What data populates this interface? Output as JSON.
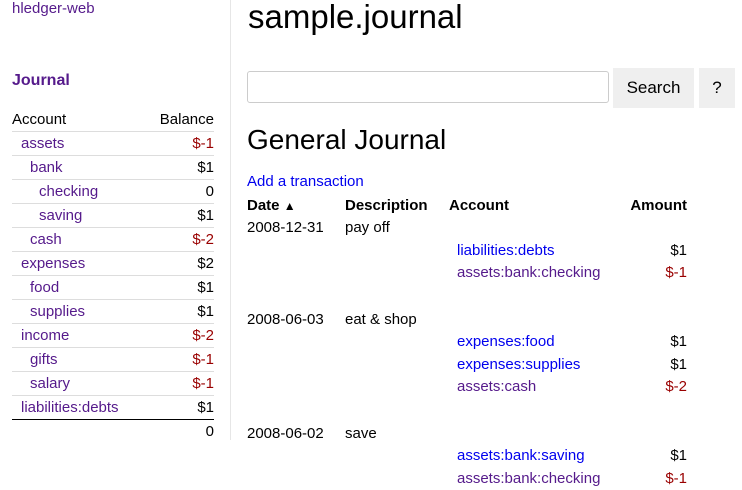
{
  "brand": "hledger-web",
  "sidebar": {
    "journal_link": "Journal",
    "headers": {
      "account": "Account",
      "balance": "Balance"
    },
    "accounts": [
      {
        "name": "assets",
        "balance": "$-1",
        "level": 1,
        "neg": true
      },
      {
        "name": "bank",
        "balance": "$1",
        "level": 2,
        "neg": false
      },
      {
        "name": "checking",
        "balance": "0",
        "level": 3,
        "neg": false
      },
      {
        "name": "saving",
        "balance": "$1",
        "level": 3,
        "neg": false
      },
      {
        "name": "cash",
        "balance": "$-2",
        "level": 2,
        "neg": true
      },
      {
        "name": "expenses",
        "balance": "$2",
        "level": 1,
        "neg": false
      },
      {
        "name": "food",
        "balance": "$1",
        "level": 2,
        "neg": false
      },
      {
        "name": "supplies",
        "balance": "$1",
        "level": 2,
        "neg": false
      },
      {
        "name": "income",
        "balance": "$-2",
        "level": 1,
        "neg": true
      },
      {
        "name": "gifts",
        "balance": "$-1",
        "level": 2,
        "neg": true
      },
      {
        "name": "salary",
        "balance": "$-1",
        "level": 2,
        "neg": true
      },
      {
        "name": "liabilities:debts",
        "balance": "$1",
        "level": 1,
        "neg": false
      }
    ],
    "total": "0"
  },
  "main": {
    "title": "sample.journal",
    "search": {
      "value": "",
      "placeholder": "",
      "button": "Search",
      "help": "?"
    },
    "heading": "General Journal",
    "add_link": "Add a transaction",
    "columns": {
      "date": "Date",
      "description": "Description",
      "account": "Account",
      "amount": "Amount"
    },
    "sort_icon": "chevron-up-icon",
    "transactions": [
      {
        "date": "2008-12-31",
        "description": "pay off",
        "postings": [
          {
            "account": "liabilities:debts",
            "amount": "$1",
            "visited": false
          },
          {
            "account": "assets:bank:checking",
            "amount": "$-1",
            "visited": true
          }
        ]
      },
      {
        "date": "2008-06-03",
        "description": "eat & shop",
        "postings": [
          {
            "account": "expenses:food",
            "amount": "$1",
            "visited": false
          },
          {
            "account": "expenses:supplies",
            "amount": "$1",
            "visited": false
          },
          {
            "account": "assets:cash",
            "amount": "$-2",
            "visited": true
          }
        ]
      },
      {
        "date": "2008-06-02",
        "description": "save",
        "postings": [
          {
            "account": "assets:bank:saving",
            "amount": "$1",
            "visited": false
          },
          {
            "account": "assets:bank:checking",
            "amount": "$-1",
            "visited": true
          }
        ]
      }
    ]
  },
  "colors": {
    "visited": "#551a8b",
    "link": "#0000ee",
    "negative": "#990000"
  }
}
